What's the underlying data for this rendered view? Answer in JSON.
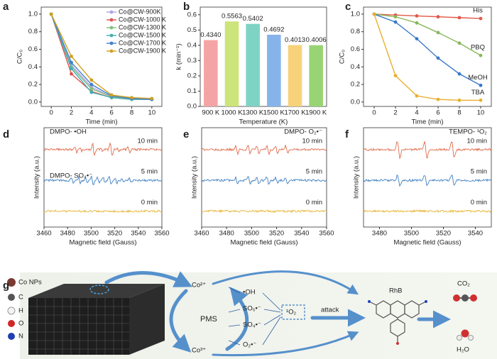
{
  "panel_labels": [
    "a",
    "b",
    "c",
    "d",
    "e",
    "f",
    "g"
  ],
  "chart_data": [
    {
      "type": "line",
      "xlabel": "Time (min)",
      "ylabel": "C/C₀",
      "x": [
        0,
        2,
        4,
        6,
        8,
        10
      ],
      "xlim": [
        -1,
        11
      ],
      "xticks": [
        0,
        2,
        4,
        6,
        8,
        10
      ],
      "ylim": [
        -0.05,
        1.08
      ],
      "yticks": [
        {
          "value": 0,
          "label": "0.0"
        },
        0.2,
        0.4,
        0.6,
        0.8,
        {
          "value": 1,
          "label": "1.0"
        }
      ],
      "legend": "upper right",
      "series": [
        {
          "name": "Co@CW-900K",
          "color": "#b4a4e4",
          "values": [
            1,
            0.42,
            0.17,
            0.06,
            0.04,
            0.03
          ]
        },
        {
          "name": "Co@CW-1000 K",
          "color": "#e05050",
          "values": [
            1,
            0.32,
            0.12,
            0.05,
            0.03,
            0.03
          ]
        },
        {
          "name": "Co@CW-1300 K",
          "color": "#80c080",
          "values": [
            1,
            0.4,
            0.15,
            0.06,
            0.04,
            0.03
          ]
        },
        {
          "name": "Co@CW-1500 K",
          "color": "#40b0b0",
          "values": [
            1,
            0.38,
            0.11,
            0.05,
            0.03,
            0.03
          ]
        },
        {
          "name": "Co@CW-1700 K",
          "color": "#4080d0",
          "values": [
            1,
            0.45,
            0.2,
            0.07,
            0.04,
            0.03
          ]
        },
        {
          "name": "Co@CW-1900 K",
          "color": "#d0a020",
          "values": [
            1,
            0.52,
            0.25,
            0.08,
            0.05,
            0.04
          ]
        }
      ]
    },
    {
      "type": "bar",
      "xlabel": "Temperature (K)",
      "ylabel": "k (min⁻¹)",
      "categories": [
        "900 K",
        "1000 K",
        "1300 K",
        "1500 K",
        "1700 K",
        "1900 K"
      ],
      "values": [
        0.434,
        0.5563,
        0.5402,
        0.4692,
        0.4013,
        0.4006
      ],
      "value_labels": [
        "0.4340",
        "0.5563",
        "0.5402",
        "0.4692",
        "0.4013",
        "0.4006"
      ],
      "colors": [
        "#f4a4a4",
        "#cce47a",
        "#7ed4c4",
        "#86b4ea",
        "#f8d27a",
        "#98d474"
      ],
      "ylim": [
        0,
        0.65
      ],
      "yticks": [
        {
          "value": 0,
          "label": "0.0"
        },
        0.1,
        0.2,
        0.3,
        0.4,
        0.5,
        0.6
      ]
    },
    {
      "type": "line",
      "xlabel": "Time (min)",
      "ylabel": "C/C₀",
      "x": [
        0,
        2,
        4,
        6,
        8,
        10
      ],
      "xlim": [
        -1,
        11
      ],
      "xticks": [
        0,
        2,
        4,
        6,
        8,
        10
      ],
      "ylim": [
        -0.05,
        1.08
      ],
      "yticks": [
        {
          "value": 0,
          "label": "0.0"
        },
        0.2,
        0.4,
        0.6,
        0.8,
        {
          "value": 1,
          "label": "1.0"
        }
      ],
      "legend": "line end",
      "series": [
        {
          "name": "His",
          "color": "#e05a4a",
          "values": [
            1,
            0.99,
            0.98,
            0.97,
            0.96,
            0.95
          ]
        },
        {
          "name": "PBQ",
          "color": "#86b85a",
          "values": [
            1,
            0.97,
            0.9,
            0.79,
            0.67,
            0.53
          ]
        },
        {
          "name": "MeOH",
          "color": "#3a78c8",
          "values": [
            1,
            0.91,
            0.72,
            0.5,
            0.32,
            0.19
          ]
        },
        {
          "name": "TBA",
          "color": "#e8b030",
          "values": [
            1,
            0.3,
            0.07,
            0.03,
            0.02,
            0.02
          ]
        }
      ]
    },
    {
      "type": "spectrum",
      "xlabel": "Magnetic field (Gauss)",
      "ylabel": "Intensity (a.u.)",
      "xlim": [
        3460,
        3560
      ],
      "xticks": [
        3460,
        3480,
        3500,
        3520,
        3540,
        3560
      ],
      "traces": [
        "10 min",
        "5 min",
        "0 min"
      ],
      "colors": [
        "#e06a4a",
        "#3f7fc2",
        "#e6b432"
      ],
      "annotations": [
        "DMPO- •OH",
        "DMPO- SO₄•⁻"
      ]
    },
    {
      "type": "spectrum",
      "xlabel": "Magnetic field (Gauss)",
      "ylabel": "Intensity (a.u.)",
      "xlim": [
        3460,
        3560
      ],
      "xticks": [
        3460,
        3480,
        3500,
        3520,
        3540,
        3560
      ],
      "traces": [
        "10 min",
        "5 min",
        "0 min"
      ],
      "colors": [
        "#e06a4a",
        "#3f7fc2",
        "#e6b432"
      ],
      "annotations": [
        "DMPO- O₂•⁻"
      ]
    },
    {
      "type": "spectrum",
      "xlabel": "Magnetic field (Gauss)",
      "ylabel": "Intensity (a.u.)",
      "xlim": [
        3470,
        3550
      ],
      "xticks": [
        3480,
        3500,
        3520,
        3540
      ],
      "traces": [
        "10 min",
        "5 min",
        "0 min"
      ],
      "colors": [
        "#e06a4a",
        "#3f7fc2",
        "#e6b432"
      ],
      "annotations": [
        "TEMPO- ¹O₂"
      ]
    }
  ],
  "diagram": {
    "legend": [
      "Co NPs",
      "C",
      "H",
      "O",
      "N"
    ],
    "labels": [
      "Co²⁺",
      "PMS",
      "Co³⁺",
      "•OH",
      "SO₅•⁻",
      "SO₄•⁻",
      "O₂•⁻",
      "¹O₂",
      "attack",
      "RhB",
      "CO₂",
      "H₂O"
    ]
  }
}
